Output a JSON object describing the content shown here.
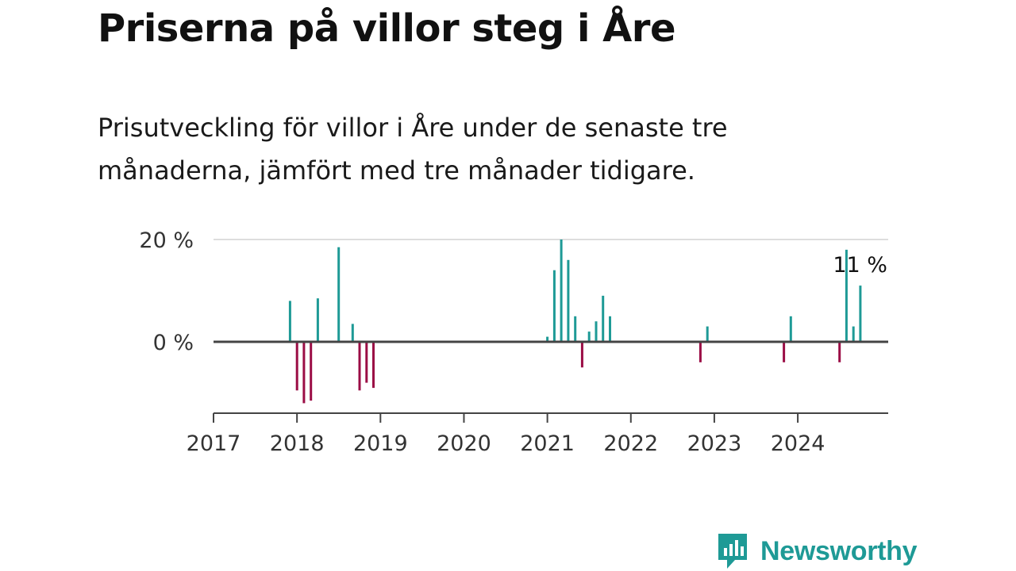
{
  "title": "Priserna på villor steg i Åre",
  "subtitle": "Prisutveckling för villor i Åre under de senaste tre månaderna, jämfört med tre månader tidigare.",
  "brand": "Newsworthy",
  "colors": {
    "positive": "#1e9a96",
    "negative": "#9b0d45",
    "axis": "#444444",
    "grid": "#dddddd",
    "brand": "#1e9a96"
  },
  "chart_data": {
    "type": "bar",
    "title": "Priserna på villor steg i Åre",
    "subtitle": "Prisutveckling för villor i Åre under de senaste tre månaderna, jämfört med tre månader tidigare.",
    "xlabel": "",
    "ylabel": "",
    "xlim": [
      "2017-01",
      "2025-02"
    ],
    "ylim": [
      -14,
      20
    ],
    "x_ticks": [
      "2017",
      "2018",
      "2019",
      "2020",
      "2021",
      "2022",
      "2023",
      "2024"
    ],
    "y_ticks": [
      {
        "value": 0,
        "label": "0 %"
      },
      {
        "value": 20,
        "label": "20 %"
      }
    ],
    "grid": "horizontal",
    "unit": "%",
    "annotation": {
      "text": "11 %",
      "date": "2024-10",
      "value": 11
    },
    "series": [
      {
        "x": [
          "2017-12",
          "2018-01",
          "2018-02",
          "2018-03",
          "2018-04",
          "2018-07",
          "2018-09",
          "2018-10",
          "2018-11",
          "2018-12",
          "2021-01",
          "2021-02",
          "2021-03",
          "2021-04",
          "2021-05",
          "2021-06",
          "2021-07",
          "2021-08",
          "2021-09",
          "2021-10",
          "2022-11",
          "2022-12",
          "2023-11",
          "2023-12",
          "2024-07",
          "2024-08",
          "2024-09",
          "2024-10"
        ],
        "values": [
          8,
          -9.5,
          -12,
          -11.5,
          8.5,
          18.5,
          3.5,
          -9.5,
          -8,
          -9,
          1,
          14,
          20,
          16,
          5,
          -5,
          2,
          4,
          9,
          5,
          -4,
          3,
          -4,
          5,
          -4,
          18,
          3,
          11
        ]
      }
    ]
  }
}
